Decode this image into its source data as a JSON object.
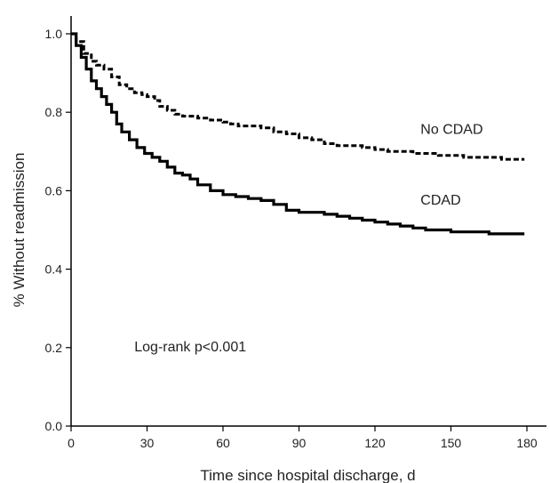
{
  "chart_data": {
    "type": "line",
    "title": "",
    "xlabel": "Time since hospital discharge, d",
    "ylabel": "% Without readmission",
    "xlim": [
      0,
      180
    ],
    "ylim": [
      0,
      1.0
    ],
    "x_ticks": [
      0,
      30,
      60,
      90,
      120,
      150,
      180
    ],
    "x_tick_labels": [
      "0",
      "30",
      "60",
      "90",
      "120",
      "150",
      "180"
    ],
    "y_ticks": [
      0.0,
      0.2,
      0.4,
      0.6,
      0.8,
      1.0
    ],
    "y_tick_labels": [
      "0.0",
      "0.2",
      "0.4",
      "0.6",
      "0.8",
      "1.0"
    ],
    "grid": false,
    "series": [
      {
        "name": "No CDAD",
        "style": "dashed",
        "color": "#000000",
        "x": [
          0,
          2,
          5,
          8,
          10,
          13,
          16,
          19,
          22,
          25,
          28,
          30,
          33,
          35,
          38,
          41,
          44,
          47,
          50,
          55,
          60,
          63,
          66,
          70,
          75,
          80,
          85,
          90,
          95,
          100,
          105,
          110,
          115,
          120,
          125,
          130,
          135,
          140,
          145,
          150,
          155,
          160,
          165,
          170,
          175,
          179
        ],
        "y": [
          1.0,
          0.98,
          0.95,
          0.93,
          0.92,
          0.91,
          0.89,
          0.87,
          0.86,
          0.85,
          0.845,
          0.84,
          0.83,
          0.815,
          0.805,
          0.795,
          0.79,
          0.79,
          0.785,
          0.78,
          0.775,
          0.77,
          0.765,
          0.765,
          0.76,
          0.75,
          0.745,
          0.735,
          0.73,
          0.72,
          0.715,
          0.715,
          0.71,
          0.705,
          0.7,
          0.7,
          0.695,
          0.695,
          0.69,
          0.69,
          0.685,
          0.685,
          0.685,
          0.68,
          0.68,
          0.68
        ]
      },
      {
        "name": "CDAD",
        "style": "solid",
        "color": "#000000",
        "x": [
          0,
          2,
          4,
          6,
          8,
          10,
          12,
          14,
          16,
          18,
          20,
          23,
          26,
          29,
          32,
          35,
          38,
          41,
          44,
          47,
          50,
          55,
          60,
          65,
          70,
          75,
          80,
          85,
          90,
          95,
          100,
          105,
          110,
          115,
          120,
          125,
          130,
          135,
          140,
          145,
          150,
          155,
          160,
          165,
          170,
          175,
          179
        ],
        "y": [
          1.0,
          0.97,
          0.94,
          0.91,
          0.88,
          0.86,
          0.84,
          0.82,
          0.8,
          0.77,
          0.75,
          0.73,
          0.71,
          0.695,
          0.685,
          0.675,
          0.66,
          0.645,
          0.64,
          0.63,
          0.615,
          0.6,
          0.59,
          0.585,
          0.58,
          0.575,
          0.565,
          0.55,
          0.545,
          0.545,
          0.54,
          0.535,
          0.53,
          0.525,
          0.52,
          0.515,
          0.51,
          0.505,
          0.5,
          0.5,
          0.495,
          0.495,
          0.495,
          0.49,
          0.49,
          0.49,
          0.49
        ]
      }
    ],
    "annotations": [
      {
        "text": "No CDAD",
        "x": 138,
        "y": 0.745
      },
      {
        "text": "CDAD",
        "x": 138,
        "y": 0.565
      },
      {
        "text": "Log-rank p<0.001",
        "x": 25,
        "y": 0.19
      }
    ]
  }
}
